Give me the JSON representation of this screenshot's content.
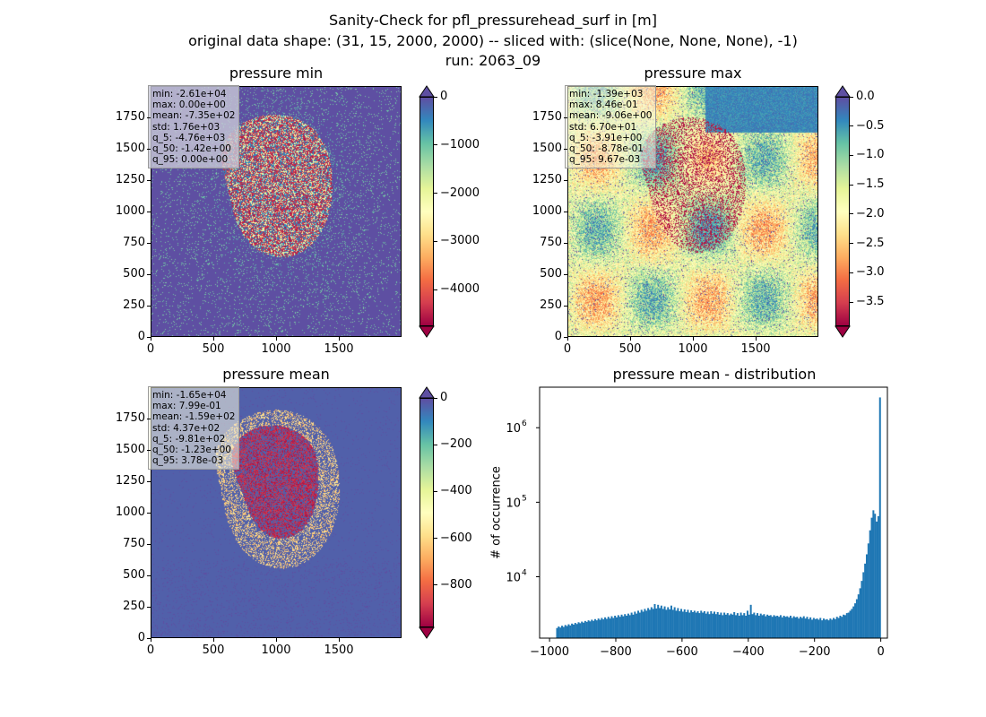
{
  "figure": {
    "title_line1": "Sanity-Check for pfl_pressurehead_surf in [m]",
    "title_line2": "original data shape: (31, 15, 2000, 2000) -- sliced with: (slice(None, None, None), -1)",
    "title_line3": "run: 2063_09"
  },
  "panels": [
    {
      "title": "pressure min",
      "stats": [
        "min: -2.61e+04",
        "max: 0.00e+00",
        "mean: -7.35e+02",
        "std: 1.76e+03",
        "q_5: -4.76e+03",
        "q_50: -1.42e+00",
        "q_95: 0.00e+00"
      ],
      "x_ticks": [
        "0",
        "500",
        "1000",
        "1500"
      ],
      "y_ticks": [
        "0",
        "250",
        "500",
        "750",
        "1000",
        "1250",
        "1500",
        "1750"
      ],
      "colorbar_ticks": [
        "0",
        "−1000",
        "−2000",
        "−3000",
        "−4000"
      ],
      "colormap": "Spectral"
    },
    {
      "title": "pressure max",
      "stats": [
        "min: -1.39e+03",
        "max: 8.46e-01",
        "mean: -9.06e+00",
        "std: 6.70e+01",
        "q_5: -3.91e+00",
        "q_50: -8.78e-01",
        "q_95: 9.67e-03"
      ],
      "x_ticks": [
        "0",
        "500",
        "1000",
        "1500"
      ],
      "y_ticks": [
        "0",
        "250",
        "500",
        "750",
        "1000",
        "1250",
        "1500",
        "1750"
      ],
      "colorbar_ticks": [
        "0.0",
        "−0.5",
        "−1.0",
        "−1.5",
        "−2.0",
        "−2.5",
        "−3.0",
        "−3.5"
      ],
      "colormap": "Spectral"
    },
    {
      "title": "pressure mean",
      "stats": [
        "min: -1.65e+04",
        "max: 7.99e-01",
        "mean: -1.59e+02",
        "std: 4.37e+02",
        "q_5: -9.81e+02",
        "q_50: -1.23e+00",
        "q_95: 3.78e-03"
      ],
      "x_ticks": [
        "0",
        "500",
        "1000",
        "1500"
      ],
      "y_ticks": [
        "0",
        "250",
        "500",
        "750",
        "1000",
        "1250",
        "1500",
        "1750"
      ],
      "colorbar_ticks": [
        "0",
        "−200",
        "−400",
        "−600",
        "−800"
      ],
      "colormap": "Spectral"
    }
  ],
  "chart_data": [
    {
      "type": "heatmap",
      "title": "pressure min",
      "xlim": [
        0,
        2000
      ],
      "ylim": [
        0,
        2000
      ],
      "colorbar_range": [
        -4760,
        0
      ],
      "colorbar_tick_values": [
        0,
        -1000,
        -2000,
        -3000,
        -4000
      ]
    },
    {
      "type": "heatmap",
      "title": "pressure max",
      "xlim": [
        0,
        2000
      ],
      "ylim": [
        0,
        2000
      ],
      "colorbar_range": [
        -3.91,
        0
      ],
      "colorbar_tick_values": [
        0.0,
        -0.5,
        -1.0,
        -1.5,
        -2.0,
        -2.5,
        -3.0,
        -3.5
      ]
    },
    {
      "type": "heatmap",
      "title": "pressure mean",
      "xlim": [
        0,
        2000
      ],
      "ylim": [
        0,
        2000
      ],
      "colorbar_range": [
        -981,
        0
      ],
      "colorbar_tick_values": [
        0,
        -200,
        -400,
        -600,
        -800
      ]
    },
    {
      "type": "bar",
      "title": "pressure mean - distribution",
      "ylabel": "# of occurrence",
      "yscale": "log",
      "color": "#1f77b4",
      "x_ticks": [
        "−1000",
        "−800",
        "−600",
        "−400",
        "−200",
        "0"
      ],
      "x_tick_values": [
        -1000,
        -800,
        -600,
        -400,
        -200,
        0
      ],
      "y_ticks": [
        "10",
        "10",
        "10"
      ],
      "y_tick_exponents": [
        "4",
        "5",
        "6"
      ],
      "y_tick_values": [
        10000,
        100000,
        1000000
      ],
      "xlim": [
        -1030,
        20
      ],
      "ylim": [
        1500,
        3500000
      ],
      "bin_width": 5,
      "x": [
        -980,
        -975,
        -970,
        -965,
        -960,
        -955,
        -950,
        -945,
        -940,
        -935,
        -930,
        -925,
        -920,
        -915,
        -910,
        -905,
        -900,
        -895,
        -890,
        -885,
        -880,
        -875,
        -870,
        -865,
        -860,
        -855,
        -850,
        -845,
        -840,
        -835,
        -830,
        -825,
        -820,
        -815,
        -810,
        -805,
        -800,
        -795,
        -790,
        -785,
        -780,
        -775,
        -770,
        -765,
        -760,
        -755,
        -750,
        -745,
        -740,
        -735,
        -730,
        -725,
        -720,
        -715,
        -710,
        -705,
        -700,
        -695,
        -690,
        -685,
        -680,
        -675,
        -670,
        -665,
        -660,
        -655,
        -650,
        -645,
        -640,
        -635,
        -630,
        -625,
        -620,
        -615,
        -610,
        -605,
        -600,
        -595,
        -590,
        -585,
        -580,
        -575,
        -570,
        -565,
        -560,
        -555,
        -550,
        -545,
        -540,
        -535,
        -530,
        -525,
        -520,
        -515,
        -510,
        -505,
        -500,
        -495,
        -490,
        -485,
        -480,
        -475,
        -470,
        -465,
        -460,
        -455,
        -450,
        -445,
        -440,
        -435,
        -430,
        -425,
        -420,
        -415,
        -410,
        -405,
        -400,
        -395,
        -390,
        -385,
        -380,
        -375,
        -370,
        -365,
        -360,
        -355,
        -350,
        -345,
        -340,
        -335,
        -330,
        -325,
        -320,
        -315,
        -310,
        -305,
        -300,
        -295,
        -290,
        -285,
        -280,
        -275,
        -270,
        -265,
        -260,
        -255,
        -250,
        -245,
        -240,
        -235,
        -230,
        -225,
        -220,
        -215,
        -210,
        -205,
        -200,
        -195,
        -190,
        -185,
        -180,
        -175,
        -170,
        -165,
        -160,
        -155,
        -150,
        -145,
        -140,
        -135,
        -130,
        -125,
        -120,
        -115,
        -110,
        -105,
        -100,
        -95,
        -90,
        -85,
        -80,
        -75,
        -70,
        -65,
        -60,
        -55,
        -50,
        -45,
        -40,
        -35,
        -30,
        -25,
        -20,
        -15,
        -10,
        -5
      ],
      "values": [
        2050,
        2150,
        2080,
        2200,
        2120,
        2250,
        2180,
        2300,
        2220,
        2350,
        2280,
        2400,
        2320,
        2450,
        2380,
        2500,
        2420,
        2550,
        2480,
        2600,
        2520,
        2650,
        2560,
        2700,
        2600,
        2750,
        2640,
        2800,
        2680,
        2850,
        2720,
        2900,
        2750,
        2950,
        2800,
        3000,
        2850,
        3050,
        2900,
        3100,
        2950,
        3150,
        3000,
        3200,
        3050,
        3300,
        3100,
        3400,
        3200,
        3500,
        3300,
        3600,
        3400,
        3700,
        3500,
        3800,
        3600,
        3900,
        3700,
        4300,
        3750,
        4200,
        3800,
        4100,
        3700,
        4000,
        3600,
        3900,
        3650,
        4100,
        3600,
        3900,
        3500,
        3800,
        3450,
        3700,
        3400,
        3650,
        3350,
        3600,
        3300,
        3550,
        3350,
        3500,
        3300,
        3450,
        3250,
        3500,
        3300,
        3450,
        3200,
        3400,
        3150,
        3450,
        3200,
        3400,
        3150,
        3350,
        3100,
        3300,
        3050,
        3300,
        3100,
        3250,
        3050,
        3200,
        3100,
        3350,
        3050,
        3250,
        3000,
        3300,
        3050,
        3250,
        3000,
        3500,
        3100,
        4200,
        3150,
        3300,
        3050,
        3250,
        3000,
        3200,
        3050,
        3150,
        2950,
        3100,
        3000,
        3050,
        2900,
        3050,
        2950,
        3000,
        2900,
        3050,
        2850,
        3000,
        2900,
        2950,
        2850,
        3000,
        2800,
        2950,
        2850,
        2900,
        2750,
        2900,
        2800,
        2950,
        2750,
        2900,
        2700,
        2850,
        2650,
        2800,
        2700,
        2750,
        2650,
        2800,
        2600,
        2750,
        2650,
        2700,
        2600,
        2750,
        2650,
        2800,
        2700,
        2900,
        2800,
        3000,
        2900,
        3100,
        3050,
        3250,
        3300,
        3500,
        3700,
        4000,
        4400,
        5000,
        5800,
        7000,
        8800,
        11500,
        15000,
        20000,
        28000,
        42000,
        62000,
        78000,
        70000,
        55000,
        65000,
        2550000
      ]
    }
  ]
}
